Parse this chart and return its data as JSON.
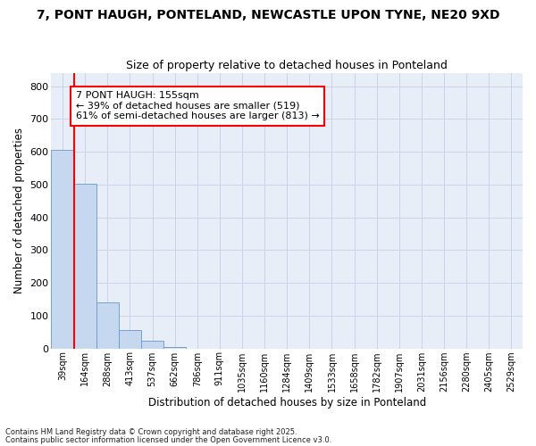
{
  "title1": "7, PONT HAUGH, PONTELAND, NEWCASTLE UPON TYNE, NE20 9XD",
  "title2": "Size of property relative to detached houses in Ponteland",
  "xlabel": "Distribution of detached houses by size in Ponteland",
  "ylabel": "Number of detached properties",
  "bar_values": [
    605,
    503,
    140,
    57,
    24,
    5,
    0,
    0,
    0,
    0,
    0,
    0,
    0,
    0,
    0,
    0,
    0,
    0,
    0,
    0,
    0
  ],
  "categories": [
    "39sqm",
    "164sqm",
    "288sqm",
    "413sqm",
    "537sqm",
    "662sqm",
    "786sqm",
    "911sqm",
    "1035sqm",
    "1160sqm",
    "1284sqm",
    "1409sqm",
    "1533sqm",
    "1658sqm",
    "1782sqm",
    "1907sqm",
    "2031sqm",
    "2156sqm",
    "2280sqm",
    "2405sqm",
    "2529sqm"
  ],
  "bar_color": "#c5d8f0",
  "bar_edge_color": "#6699cc",
  "grid_color": "#c8d4e8",
  "bg_color": "#e8eef8",
  "vline_color": "red",
  "annotation_text": "7 PONT HAUGH: 155sqm\n← 39% of detached houses are smaller (519)\n61% of semi-detached houses are larger (813) →",
  "annotation_box_facecolor": "white",
  "annotation_box_edgecolor": "red",
  "ylim": [
    0,
    840
  ],
  "yticks": [
    0,
    100,
    200,
    300,
    400,
    500,
    600,
    700,
    800
  ],
  "footer1": "Contains HM Land Registry data © Crown copyright and database right 2025.",
  "footer2": "Contains public sector information licensed under the Open Government Licence v3.0."
}
